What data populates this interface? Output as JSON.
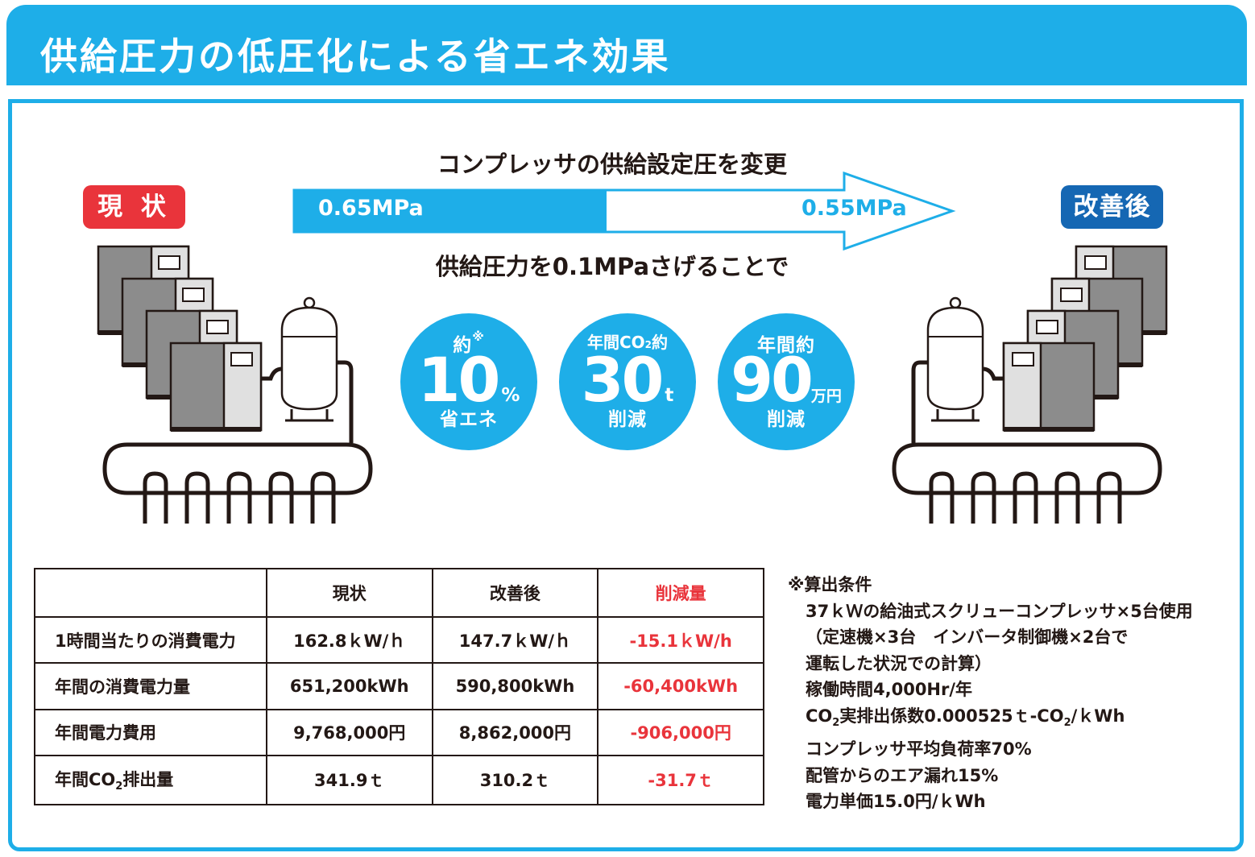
{
  "header": {
    "title": "供給圧力の低圧化による省エネ効果"
  },
  "status": {
    "current": "現 状",
    "after": "改善後"
  },
  "arrow": {
    "top_text": "コンプレッサの供給設定圧を変更",
    "from_pressure": "0.65MPa",
    "to_pressure": "0.55MPa",
    "bottom_text": "供給圧力を0.1MPaさげることで"
  },
  "badges": [
    {
      "top": "約",
      "mark": "※",
      "value": "10",
      "unit": "%",
      "bottom": "省エネ"
    },
    {
      "top_a": "年間CO",
      "top_sub": "2",
      "top_b": "約",
      "value": "30",
      "unit": "t",
      "bottom": "削減"
    },
    {
      "top": "年間約",
      "value": "90",
      "unit": "万円",
      "bottom": "削減"
    }
  ],
  "table": {
    "headers": [
      "",
      "現状",
      "改善後",
      "削減量"
    ],
    "rows": [
      {
        "label": "1時間当たりの消費電力",
        "current": "162.8ｋW/ｈ",
        "after": "147.7ｋW/ｈ",
        "reduction": "-15.1ｋW/h"
      },
      {
        "label": "年間の消費電力量",
        "current": "651,200kWh",
        "after": "590,800kWh",
        "reduction": "-60,400kWh"
      },
      {
        "label": "年間電力費用",
        "current": "9,768,000円",
        "after": "8,862,000円",
        "reduction": "-906,000円"
      },
      {
        "label_a": "年間CO",
        "label_sub": "2",
        "label_b": "排出量",
        "current": "341.9ｔ",
        "after": "310.2ｔ",
        "reduction": "-31.7ｔ"
      }
    ]
  },
  "notes": {
    "title": "※算出条件",
    "line1": "37ｋＷの給油式スクリューコンプレッサ×5台使用",
    "line2": "（定速機×3台　インバータ制御機×2台で",
    "line3": "運転した状況での計算）",
    "line4": "稼働時間4,000Hr/年",
    "line5_a": "CO",
    "line5_sub": "2",
    "line5_b": "実排出係数0.000525ｔ-CO",
    "line5_sub2": "2",
    "line5_c": "/ｋWh",
    "line6": "コンプレッサ平均負荷率70%",
    "line7": "配管からのエア漏れ15%",
    "line8": "電力単価15.0円/ｋWh"
  },
  "colors": {
    "accent": "#1eaee8",
    "current": "#e9343b",
    "after": "#1567b3",
    "reduction": "#e9343b"
  }
}
